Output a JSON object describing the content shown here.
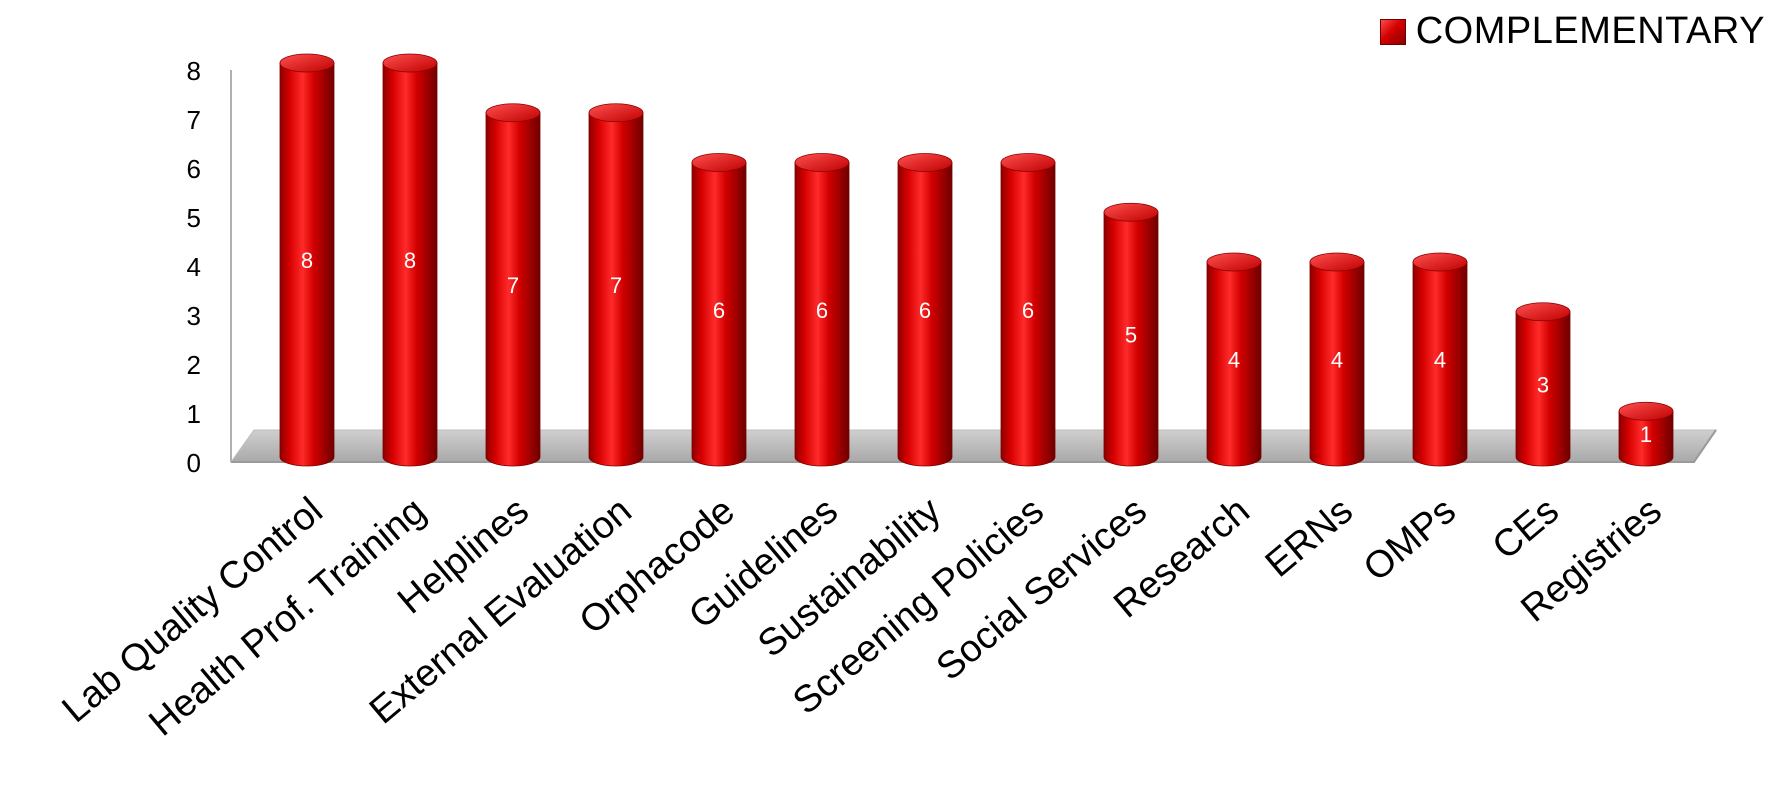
{
  "chart_data": {
    "type": "bar",
    "categories": [
      "Lab Quality Control",
      "Health Prof. Training",
      "Helplines",
      "External Evaluation",
      "Orphacode",
      "Guidelines",
      "Sustainability",
      "Screening Policies",
      "Social Services",
      "Research",
      "ERNs",
      "OMPs",
      "CEs",
      "Registries"
    ],
    "series": [
      {
        "name": "COMPLEMENTARY",
        "values": [
          8,
          8,
          7,
          7,
          6,
          6,
          6,
          6,
          5,
          4,
          4,
          4,
          3,
          1
        ]
      }
    ],
    "ylim": [
      0,
      8
    ],
    "yticks": [
      "0",
      "1",
      "2",
      "3",
      "4",
      "5",
      "6",
      "7",
      "8"
    ],
    "legend_position": "top-right",
    "grid": false,
    "bar_color": "#cc0000",
    "data_labels": true
  }
}
